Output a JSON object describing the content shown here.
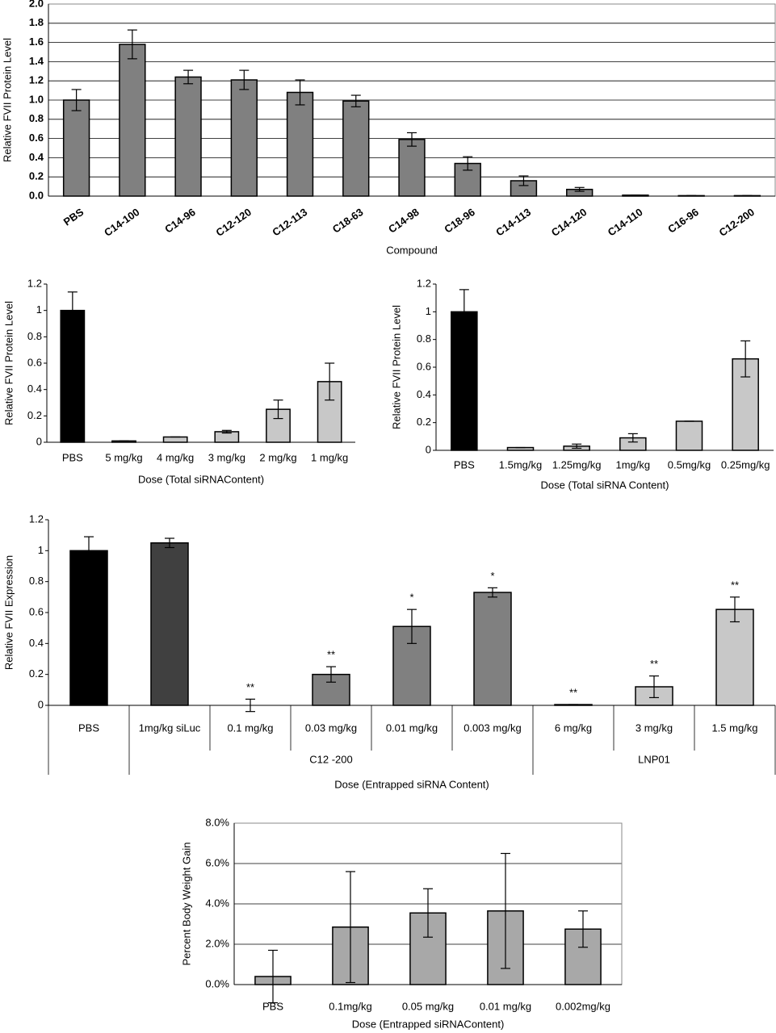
{
  "chart_data": [
    {
      "type": "bar",
      "y_label": "Relative FVII Protein Level",
      "x_label": "Compound",
      "categories": [
        "PBS",
        "C14-100",
        "C14-96",
        "C12-120",
        "C12-113",
        "C18-63",
        "C14-98",
        "C18-96",
        "C14-113",
        "C14-120",
        "C14-110",
        "C16-96",
        "C12-200"
      ],
      "values": [
        1.0,
        1.58,
        1.24,
        1.21,
        1.08,
        0.99,
        0.59,
        0.34,
        0.16,
        0.07,
        0.01,
        0.005,
        0.005
      ],
      "errors": [
        0.11,
        0.15,
        0.07,
        0.1,
        0.13,
        0.06,
        0.07,
        0.07,
        0.05,
        0.02,
        0,
        0,
        0
      ],
      "color": "#808080",
      "ylim": [
        0,
        2.0
      ],
      "yticks": [
        {
          "value": 0,
          "label": "0.0"
        },
        0.2,
        0.4,
        0.6,
        0.8,
        {
          "value": 1,
          "label": "1.0"
        },
        1.2,
        1.4,
        1.6,
        1.8,
        {
          "value": 2,
          "label": "2.0"
        }
      ],
      "grid": true
    },
    {
      "type": "bar",
      "y_label": "Relative FVII Protein Level",
      "x_label": "Dose (Total siRNAContent)",
      "categories": [
        "PBS",
        "5 mg/kg",
        "4 mg/kg",
        "3 mg/kg",
        "2 mg/kg",
        "1 mg/kg"
      ],
      "values": [
        1.0,
        0.01,
        0.04,
        0.08,
        0.25,
        0.46
      ],
      "errors": [
        0.14,
        0,
        0,
        0.01,
        0.07,
        0.14
      ],
      "colors": [
        "#000000",
        "#c8c8c8",
        "#c8c8c8",
        "#c8c8c8",
        "#c8c8c8",
        "#c8c8c8"
      ],
      "ylim": [
        0,
        1.2
      ],
      "yticks": [
        0,
        0.2,
        0.4,
        0.6,
        0.8,
        1,
        1.2
      ],
      "grid": false
    },
    {
      "type": "bar",
      "y_label": "Relative FVII Protein Level",
      "x_label": "Dose (Total siRNA Content)",
      "categories": [
        "PBS",
        "1.5mg/kg",
        "1.25mg/kg",
        "1mg/kg",
        "0.5mg/kg",
        "0.25mg/kg"
      ],
      "values": [
        1.0,
        0.02,
        0.03,
        0.09,
        0.21,
        0.66
      ],
      "errors": [
        0.16,
        0,
        0.015,
        0.03,
        0,
        0.13
      ],
      "colors": [
        "#000000",
        "#c8c8c8",
        "#c8c8c8",
        "#c8c8c8",
        "#c8c8c8",
        "#c8c8c8"
      ],
      "ylim": [
        0,
        1.2
      ],
      "yticks": [
        0,
        0.2,
        0.4,
        0.6,
        0.8,
        1,
        1.2
      ],
      "grid": false
    },
    {
      "type": "bar",
      "y_label": "Relative FVII Expression",
      "x_label": "Dose (Entrapped siRNA Content)",
      "categories": [
        "PBS",
        "1mg/kg siLuc",
        "0.1 mg/kg",
        "0.03 mg/kg",
        "0.01 mg/kg",
        "0.003 mg/kg",
        "6 mg/kg",
        "3 mg/kg",
        "1.5 mg/kg"
      ],
      "values": [
        1.0,
        1.05,
        0.0,
        0.2,
        0.51,
        0.73,
        0.005,
        0.12,
        0.62
      ],
      "errors": [
        0.09,
        0.03,
        0.04,
        0.05,
        0.11,
        0.03,
        0,
        0.07,
        0.08
      ],
      "annotations": [
        null,
        null,
        "**",
        "**",
        "*",
        "*",
        "**",
        "**",
        "**"
      ],
      "colors": [
        "#000000",
        "#404040",
        "#808080",
        "#808080",
        "#808080",
        "#808080",
        "#c8c8c8",
        "#c8c8c8",
        "#c8c8c8"
      ],
      "groups": [
        {
          "label": "C12 -200",
          "first": 1,
          "count": 5
        },
        {
          "label": "LNP01",
          "first": 6,
          "count": 3
        }
      ],
      "ylim": [
        0,
        1.2
      ],
      "yticks": [
        0,
        0.2,
        0.4,
        0.6,
        0.8,
        1,
        1.2
      ],
      "grid": false
    },
    {
      "type": "bar",
      "y_label": "Percent Body Weight Gain",
      "x_label": "Dose (Entrapped siRNAContent)",
      "categories": [
        "PBS",
        "0.1mg/kg",
        "0.05 mg/kg",
        "0.01 mg/kg",
        "0.002mg/kg"
      ],
      "values": [
        0.4,
        2.85,
        3.55,
        3.65,
        2.75
      ],
      "errors": [
        1.3,
        2.75,
        1.2,
        2.85,
        0.9
      ],
      "color": "#a8a8a8",
      "ylim": [
        0,
        8
      ],
      "yticks": [
        {
          "value": 0,
          "label": "0.0%"
        },
        {
          "value": 2,
          "label": "2.0%"
        },
        {
          "value": 4,
          "label": "4.0%"
        },
        {
          "value": 6,
          "label": "6.0%"
        },
        {
          "value": 8,
          "label": "8.0%"
        }
      ],
      "grid": true
    }
  ]
}
